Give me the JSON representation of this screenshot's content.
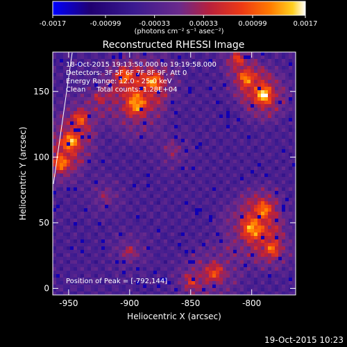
{
  "colorbar": {
    "ticks": [
      "-0.0017",
      "-0.00099",
      "-0.00033",
      "0.00033",
      "0.00099",
      "0.0017"
    ],
    "units": "(photons cm⁻² s⁻¹ asec⁻²)",
    "range": [
      -0.0017,
      0.0017
    ]
  },
  "chart_data": {
    "type": "heatmap",
    "title": "Reconstructed RHESSI Image",
    "xlabel": "Heliocentric X (arcsec)",
    "ylabel": "Heliocentric Y (arcsec)",
    "x_ticks": [
      -950,
      -900,
      -850,
      -800
    ],
    "y_ticks": [
      0,
      50,
      100,
      150
    ],
    "xlim": [
      -963,
      -764
    ],
    "ylim": [
      -5,
      180
    ],
    "annotations": [
      "18-Oct-2015 19:13:58.000 to 19:19:58.000",
      "Detectors: 3F 5F 6F 7F 8F 9F, Att 0",
      "Energy Range: 12.0 - 25.0 keV",
      "Clean     Total counts: 1.28E+04"
    ],
    "peak_label": "Position of Peak = [-792,144]",
    "peak": [
      -792,
      144
    ],
    "colormap": [
      "#0000ff",
      "#200070",
      "#3a1a90",
      "#6a2a8c",
      "#b8203c",
      "#ee3a14",
      "#ff7a00",
      "#ffd020",
      "#ffffff"
    ]
  },
  "footer": {
    "timestamp": "19-Oct-2015 10:23"
  }
}
